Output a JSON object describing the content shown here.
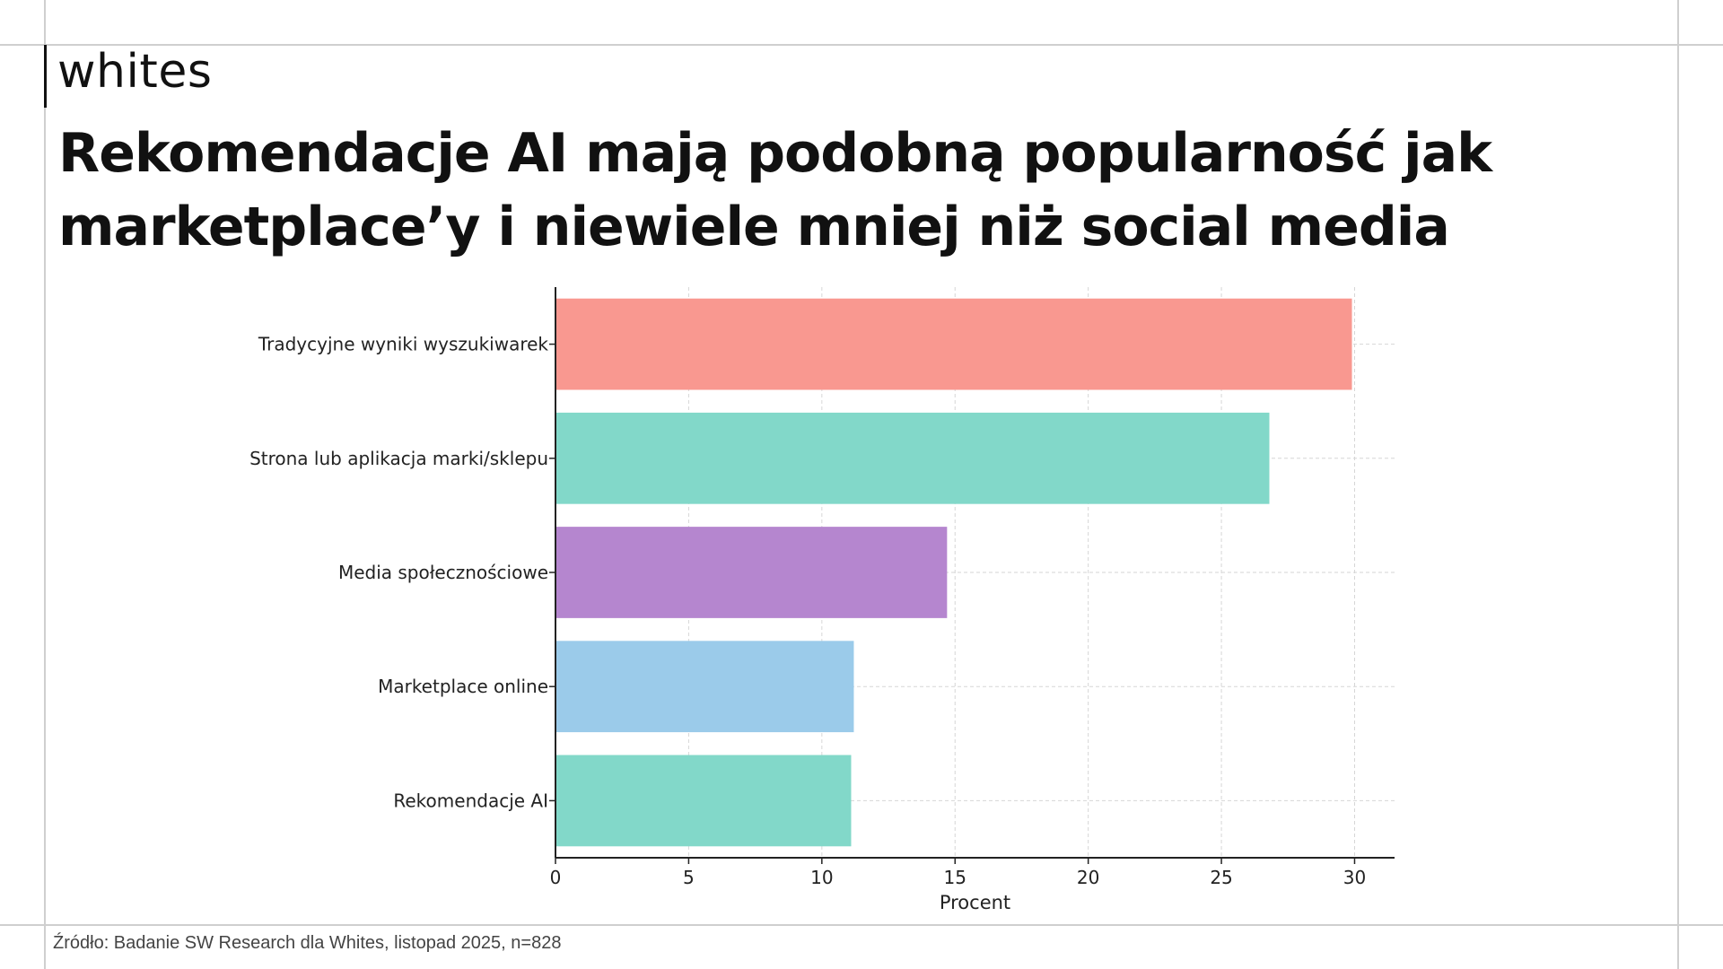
{
  "brand": {
    "name": "whites"
  },
  "headline": {
    "line1": "Rekomendacje AI mają podobną popularność jak",
    "line2": "marketplace’y i niewiele mniej niż social media"
  },
  "chart_data": {
    "type": "bar",
    "orientation": "horizontal",
    "title": "Rekomendacje AI mają podobną popularność jak marketplace’y i niewiele mniej niż social media",
    "categories": [
      "Tradycyjne wyniki wyszukiwarek",
      "Strona lub aplikacja marki/sklepu",
      "Media społecznościowe",
      "Marketplace online",
      "Rekomendacje AI"
    ],
    "values": [
      29.9,
      26.8,
      14.7,
      11.2,
      11.1
    ],
    "colors": [
      "#f99890",
      "#82d8c9",
      "#b586cf",
      "#9bcbea",
      "#82d8c9"
    ],
    "xlabel": "Procent",
    "ylabel": "",
    "xlim": [
      0,
      31.5
    ],
    "xticks": [
      0,
      5,
      10,
      15,
      20,
      25,
      30
    ],
    "grid": true
  },
  "footer": {
    "source": "Źródło: Badanie SW Research dla Whites, listopad 2025, n=828"
  }
}
